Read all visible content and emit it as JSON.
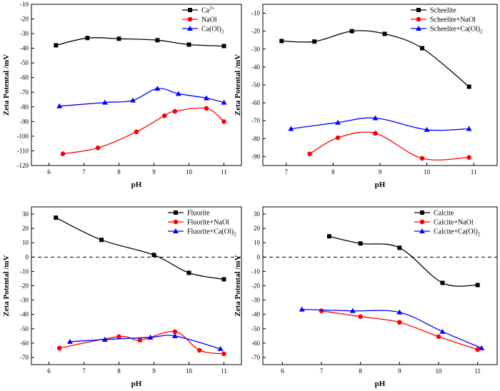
{
  "chart_data": [
    {
      "type": "scatter",
      "title": "",
      "xlabel": "pH",
      "ylabel": "Zeta Potental /mV",
      "xlim": [
        5.5,
        11.5
      ],
      "ylim": [
        -120,
        -10
      ],
      "xticks": [
        6,
        7,
        8,
        9,
        10,
        11
      ],
      "yticks": [
        -120,
        -110,
        -100,
        -90,
        -80,
        -70,
        -60,
        -50,
        -40,
        -30,
        -20,
        -10
      ],
      "zero_line": false,
      "legend_position": "top-right",
      "series": [
        {
          "name": "Ca",
          "name_sup": "2+",
          "color": "#000000",
          "marker": "square",
          "x": [
            6.2,
            7.1,
            8.0,
            9.1,
            10.0,
            11.0
          ],
          "y": [
            -38,
            -33,
            -33.5,
            -34.5,
            -37.5,
            -38.5
          ]
        },
        {
          "name": "NaOl",
          "name_sup": "",
          "color": "#ff0000",
          "marker": "circle",
          "x": [
            6.4,
            7.4,
            8.5,
            9.3,
            9.6,
            10.5,
            11.0
          ],
          "y": [
            -112,
            -108,
            -97,
            -86,
            -83,
            -81,
            -90
          ]
        },
        {
          "name": "Ca(Ol)",
          "name_sub": "2",
          "color": "#0000ff",
          "marker": "triangle",
          "x": [
            6.3,
            7.6,
            8.4,
            9.1,
            9.7,
            10.5,
            11.0
          ],
          "y": [
            -79.5,
            -77,
            -75.5,
            -67.5,
            -71,
            -74,
            -77
          ]
        }
      ]
    },
    {
      "type": "scatter",
      "title": "",
      "xlabel": "pH",
      "ylabel": "Zeta Potental /mV",
      "xlim": [
        6.5,
        11.5
      ],
      "ylim": [
        -95,
        -5
      ],
      "xticks": [
        7,
        8,
        9,
        10,
        11
      ],
      "yticks": [
        -90,
        -80,
        -70,
        -60,
        -50,
        -40,
        -30,
        -20,
        -10
      ],
      "zero_line": false,
      "legend_position": "top-right",
      "series": [
        {
          "name": "Scheelite",
          "color": "#000000",
          "marker": "square",
          "x": [
            6.9,
            7.6,
            8.4,
            9.1,
            9.9,
            10.9
          ],
          "y": [
            -25.5,
            -25.8,
            -20,
            -21.5,
            -29.5,
            -51
          ]
        },
        {
          "name": "Scheelite+NaOl",
          "color": "#ff0000",
          "marker": "circle",
          "x": [
            7.5,
            8.1,
            8.9,
            9.9,
            10.9
          ],
          "y": [
            -88.5,
            -79.5,
            -77,
            -91,
            -90.5
          ]
        },
        {
          "name": "Scheelite+Ca(Ol)",
          "name_sub": "2",
          "color": "#0000ff",
          "marker": "triangle",
          "x": [
            7.1,
            8.1,
            8.9,
            10.0,
            10.9
          ],
          "y": [
            -74.5,
            -71,
            -68.5,
            -75,
            -74.5
          ]
        }
      ]
    },
    {
      "type": "scatter",
      "title": "",
      "xlabel": "pH",
      "ylabel": "Zeta Potental /mV",
      "xlim": [
        5.5,
        11.5
      ],
      "ylim": [
        -75,
        35
      ],
      "xticks": [
        6,
        7,
        8,
        9,
        10,
        11
      ],
      "yticks": [
        -70,
        -60,
        -50,
        -40,
        -30,
        -20,
        -10,
        0,
        10,
        20,
        30
      ],
      "zero_line": true,
      "legend_position": "top-right",
      "series": [
        {
          "name": "Fluorite",
          "color": "#000000",
          "marker": "square",
          "x": [
            6.2,
            7.5,
            9.0,
            10.0,
            11.0
          ],
          "y": [
            27.5,
            12,
            1.5,
            -11,
            -15.5
          ]
        },
        {
          "name": "Fluorite+NaOl",
          "color": "#ff0000",
          "marker": "circle",
          "x": [
            6.3,
            8.0,
            8.6,
            9.6,
            10.3,
            11.0
          ],
          "y": [
            -63.5,
            -55.5,
            -58,
            -52,
            -65,
            -67.5
          ]
        },
        {
          "name": "Fluorite+Ca(Ol)",
          "name_sub": "2",
          "color": "#0000ff",
          "marker": "triangle",
          "x": [
            6.6,
            7.6,
            8.9,
            9.6,
            10.9
          ],
          "y": [
            -59,
            -57.5,
            -56,
            -55,
            -64
          ]
        }
      ]
    },
    {
      "type": "scatter",
      "title": "",
      "xlabel": "pH",
      "ylabel": "Zeta Potental /mV",
      "xlim": [
        5.5,
        11.5
      ],
      "ylim": [
        -75,
        35
      ],
      "xticks": [
        6,
        7,
        8,
        9,
        10,
        11
      ],
      "yticks": [
        -70,
        -60,
        -50,
        -40,
        -30,
        -20,
        -10,
        0,
        10,
        20,
        30
      ],
      "zero_line": true,
      "legend_position": "top-right",
      "series": [
        {
          "name": "Calcite",
          "color": "#000000",
          "marker": "square",
          "x": [
            7.2,
            8.0,
            9.0,
            10.1,
            11.0
          ],
          "y": [
            14.5,
            9.5,
            6.5,
            -18,
            -19.5
          ]
        },
        {
          "name": "Calcite+NaOl",
          "color": "#ff0000",
          "marker": "circle",
          "x": [
            7.0,
            8.0,
            9.0,
            10.0,
            11.0
          ],
          "y": [
            -37.5,
            -41.5,
            -45.5,
            -55.5,
            -64.5
          ]
        },
        {
          "name": "Calcite+Ca(Ol)",
          "name_sub": "2",
          "color": "#0000ff",
          "marker": "triangle",
          "x": [
            6.5,
            7.8,
            9.0,
            10.1,
            11.1
          ],
          "y": [
            -36.5,
            -37.5,
            -38.5,
            -52,
            -63.5
          ]
        }
      ]
    }
  ]
}
